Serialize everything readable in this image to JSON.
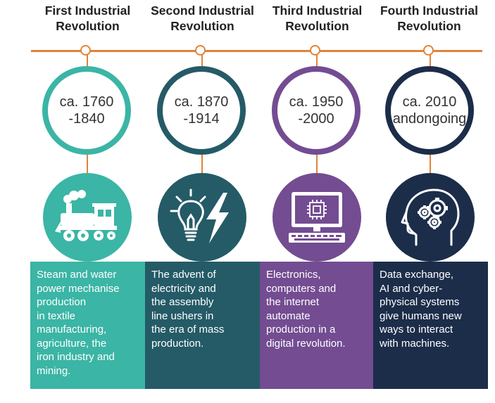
{
  "eras": [
    {
      "title": [
        "First Industrial",
        "Revolution"
      ],
      "date": [
        "ca. 1760",
        "-1840"
      ],
      "description": [
        "Steam and water",
        "power mechanise",
        "production",
        "in textile",
        "manufacturing,",
        "agriculture, the",
        "iron industry and",
        "mining."
      ],
      "icon": "steam-locomotive-icon",
      "color": "#3bb5a5"
    },
    {
      "title": [
        "Second Industrial",
        "Revolution"
      ],
      "date": [
        "ca. 1870",
        "-1914"
      ],
      "description": [
        "The advent of",
        "electricity and",
        "the assembly",
        "line ushers in",
        "the era of mass",
        "production."
      ],
      "icon": "lightbulb-lightning-icon",
      "color": "#245b67"
    },
    {
      "title": [
        "Third Industrial",
        "Revolution"
      ],
      "date": [
        "ca. 1950",
        "-2000"
      ],
      "description": [
        "Electronics,",
        "computers and",
        "the internet",
        "automate",
        "production in a",
        "digital revolution."
      ],
      "icon": "computer-chip-icon",
      "color": "#734c92"
    },
    {
      "title": [
        "Fourth Industrial",
        "Revolution"
      ],
      "date": [
        "ca. 2010",
        "andongoing"
      ],
      "description": [
        "Data exchange,",
        "AI and cyber-",
        "physical systems",
        "give humans new",
        "ways to interact",
        "with machines."
      ],
      "icon": "brain-gears-icon",
      "color": "#1c2d4a"
    }
  ],
  "accent_color": "#e0843a"
}
